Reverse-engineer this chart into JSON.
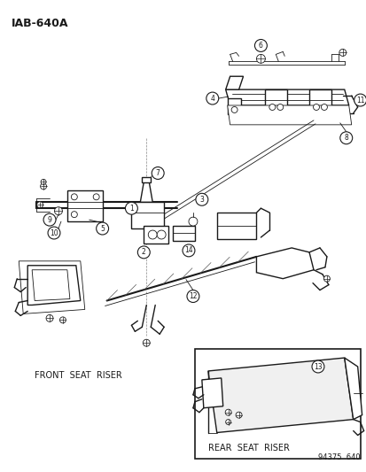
{
  "title": "IAB-640A",
  "bg_color": "#ffffff",
  "line_color": "#1a1a1a",
  "fig_width": 4.14,
  "fig_height": 5.33,
  "dpi": 100,
  "front_seat_label": "FRONT  SEAT  RISER",
  "rear_seat_label": "REAR  SEAT  RISER",
  "catalog_number": "94375  640"
}
